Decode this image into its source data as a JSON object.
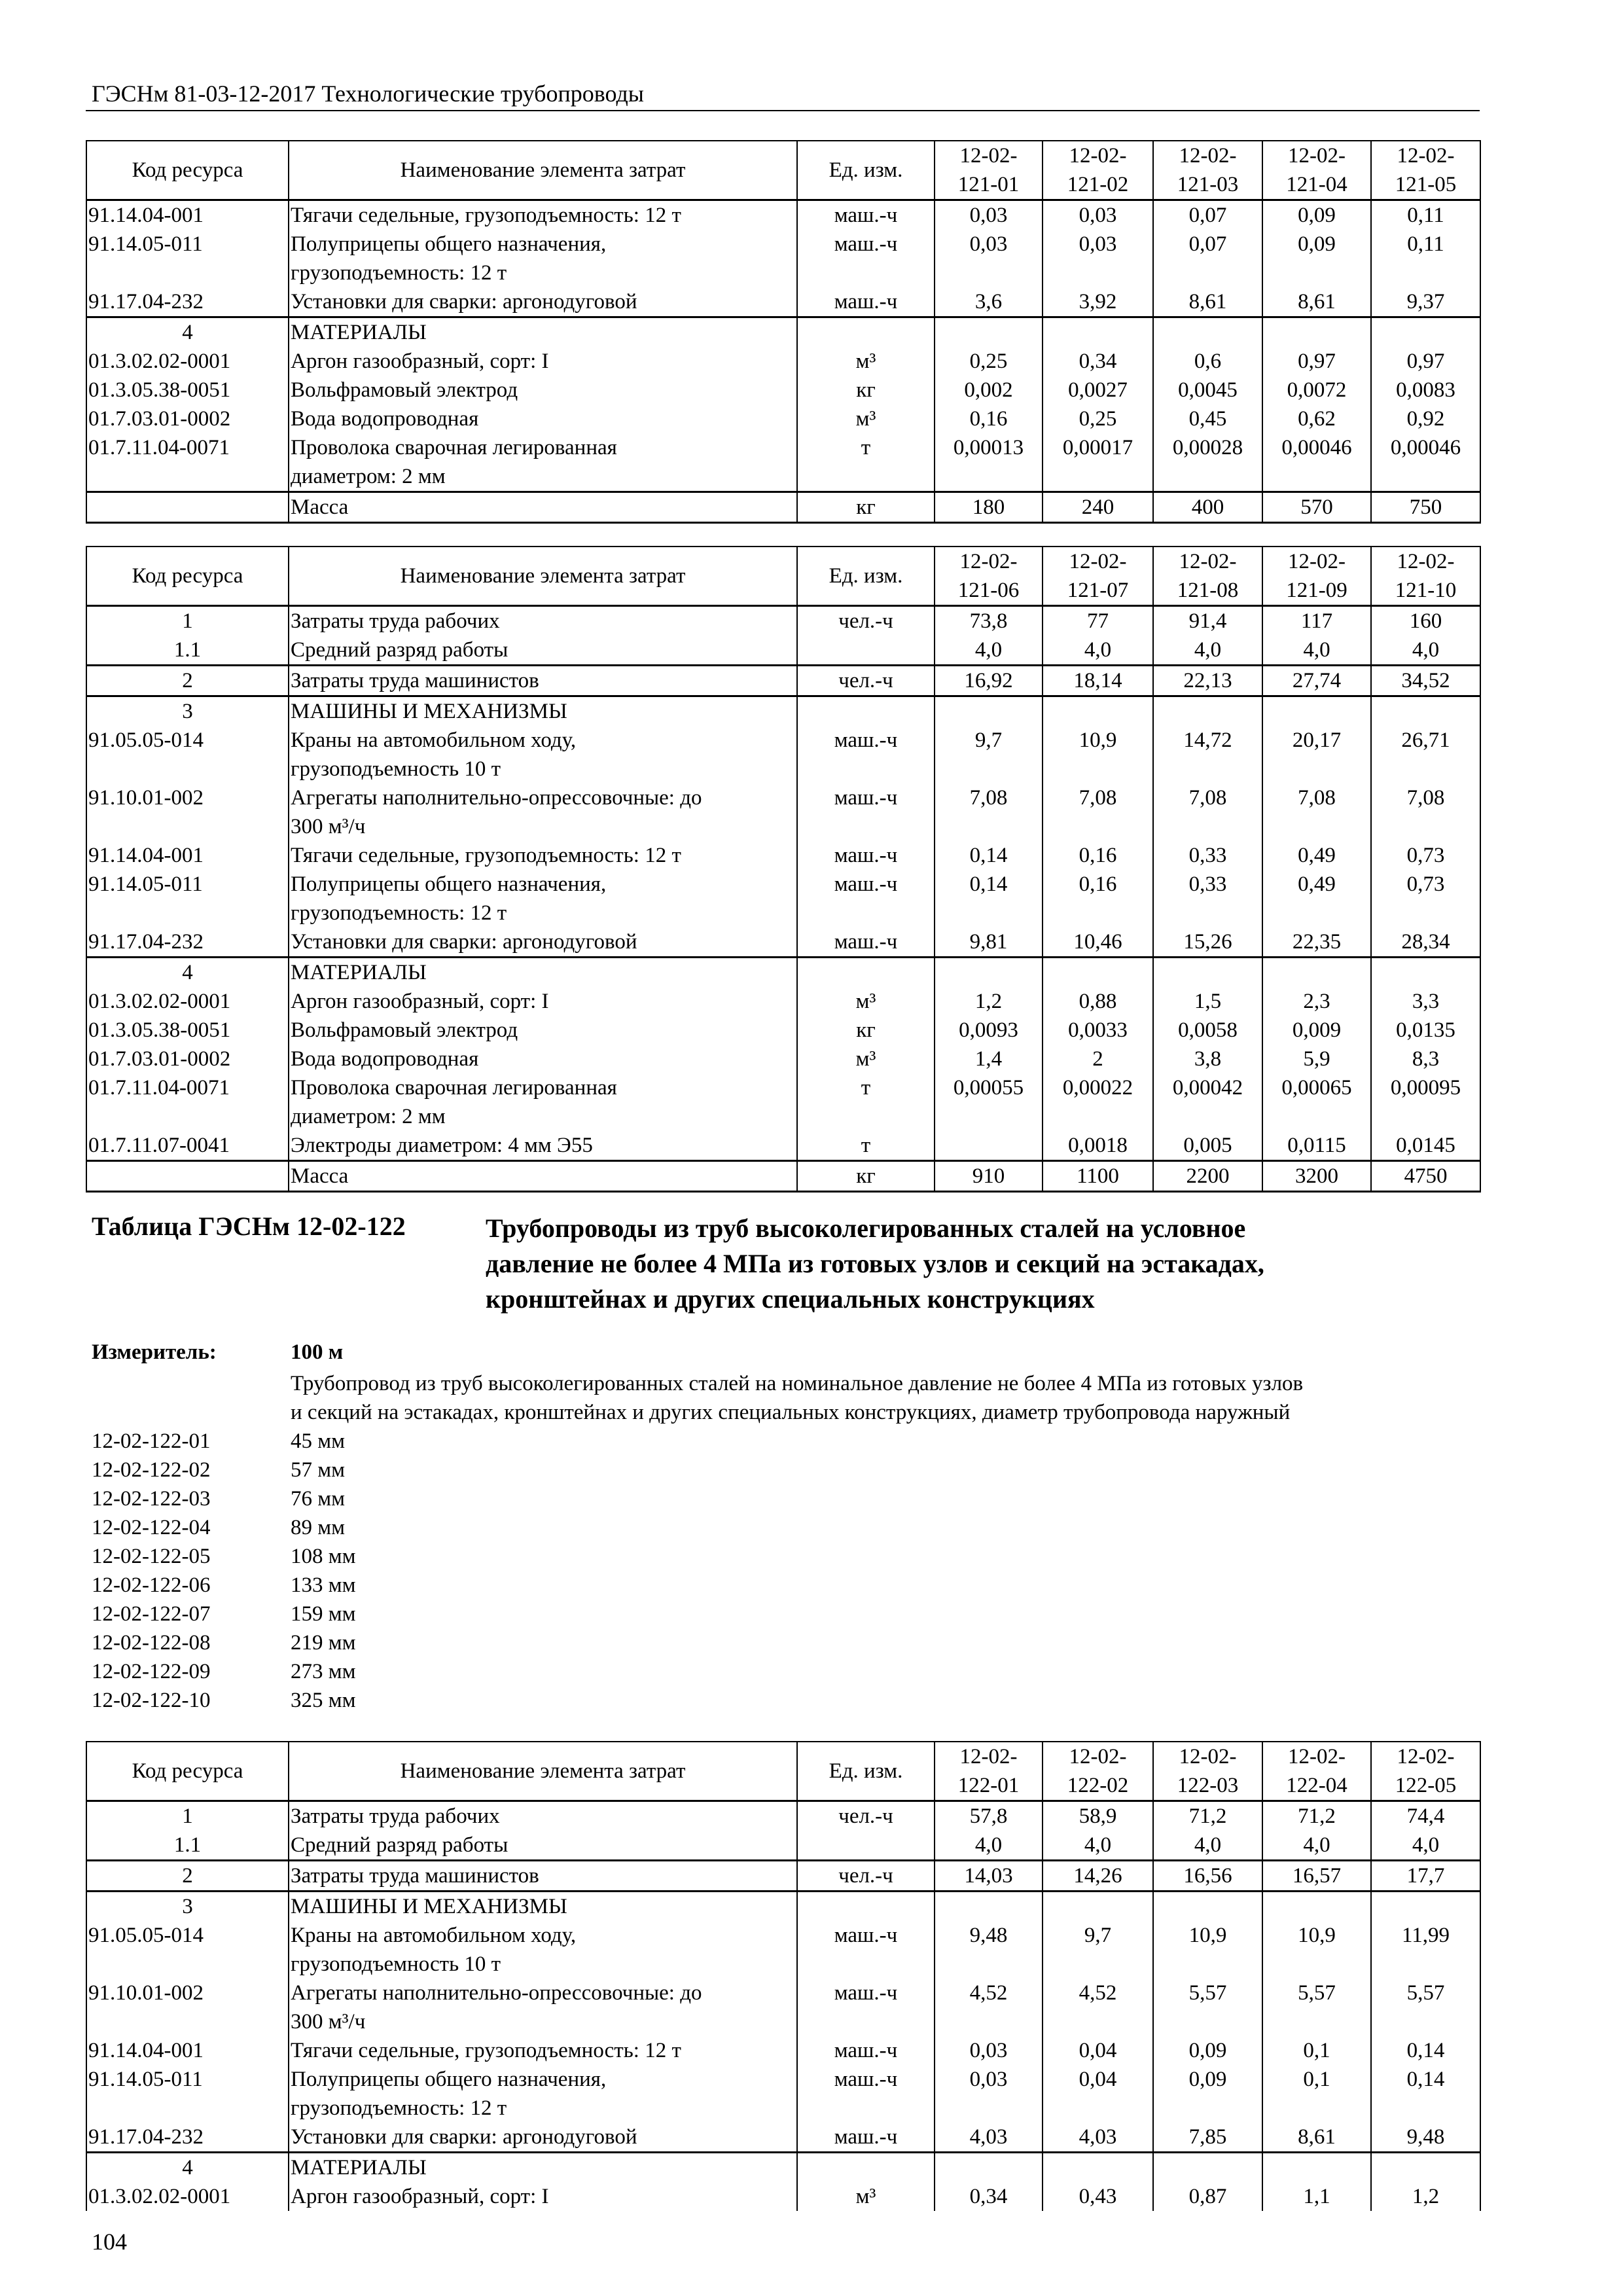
{
  "running_head": "ГЭСНм 81-03-12-2017 Технологические трубопроводы",
  "headers": {
    "code": "Код ресурса",
    "name": "Наименование элемента затрат",
    "unit": "Ед. изм."
  },
  "tables": [
    {
      "columns": [
        "12-02-\n121-01",
        "12-02-\n121-02",
        "12-02-\n121-03",
        "12-02-\n121-04",
        "12-02-\n121-05"
      ],
      "sections": [
        [
          {
            "code": "91.14.04-001",
            "name": "Тягачи седельные, грузоподъемность: 12 т",
            "unit": "маш.-ч",
            "values": [
              "0,03",
              "0,03",
              "0,07",
              "0,09",
              "0,11"
            ]
          },
          {
            "code": "91.14.05-011",
            "name": "Полуприцепы общего назначения,\nгрузоподъемность: 12 т",
            "unit": "маш.-ч",
            "values": [
              "0,03",
              "0,03",
              "0,07",
              "0,09",
              "0,11"
            ]
          },
          {
            "code": "91.17.04-232",
            "name": "Установки для сварки: аргонодуговой",
            "unit": "маш.-ч",
            "values": [
              "3,6",
              "3,92",
              "8,61",
              "8,61",
              "9,37"
            ]
          }
        ],
        [
          {
            "code": "4",
            "name": "МАТЕРИАЛЫ",
            "unit": "",
            "values": [
              "",
              "",
              "",
              "",
              ""
            ]
          },
          {
            "code": "01.3.02.02-0001",
            "name": "Аргон газообразный, сорт: I",
            "unit": "м³",
            "values": [
              "0,25",
              "0,34",
              "0,6",
              "0,97",
              "0,97"
            ]
          },
          {
            "code": "01.3.05.38-0051",
            "name": "Вольфрамовый электрод",
            "unit": "кг",
            "values": [
              "0,002",
              "0,0027",
              "0,0045",
              "0,0072",
              "0,0083"
            ]
          },
          {
            "code": "01.7.03.01-0002",
            "name": "Вода водопроводная",
            "unit": "м³",
            "values": [
              "0,16",
              "0,25",
              "0,45",
              "0,62",
              "0,92"
            ]
          },
          {
            "code": "01.7.11.04-0071",
            "name": "Проволока сварочная легированная\nдиаметром: 2 мм",
            "unit": "т",
            "values": [
              "0,00013",
              "0,00017",
              "0,00028",
              "0,00046",
              "0,00046"
            ]
          }
        ],
        [
          {
            "code": "",
            "name": "Масса",
            "unit": "кг",
            "values": [
              "180",
              "240",
              "400",
              "570",
              "750"
            ]
          }
        ]
      ]
    },
    {
      "columns": [
        "12-02-\n121-06",
        "12-02-\n121-07",
        "12-02-\n121-08",
        "12-02-\n121-09",
        "12-02-\n121-10"
      ],
      "sections": [
        [
          {
            "code": "1",
            "name": "Затраты труда рабочих",
            "unit": "чел.-ч",
            "values": [
              "73,8",
              "77",
              "91,4",
              "117",
              "160"
            ]
          },
          {
            "code": "1.1",
            "name": "Средний разряд работы",
            "unit": "",
            "values": [
              "4,0",
              "4,0",
              "4,0",
              "4,0",
              "4,0"
            ]
          }
        ],
        [
          {
            "code": "2",
            "name": "Затраты труда машинистов",
            "unit": "чел.-ч",
            "values": [
              "16,92",
              "18,14",
              "22,13",
              "27,74",
              "34,52"
            ]
          }
        ],
        [
          {
            "code": "3",
            "name": "МАШИНЫ И МЕХАНИЗМЫ",
            "unit": "",
            "values": [
              "",
              "",
              "",
              "",
              ""
            ]
          },
          {
            "code": "91.05.05-014",
            "name": "Краны на автомобильном ходу,\nгрузоподъемность 10 т",
            "unit": "маш.-ч",
            "values": [
              "9,7",
              "10,9",
              "14,72",
              "20,17",
              "26,71"
            ]
          },
          {
            "code": "91.10.01-002",
            "name": "Агрегаты наполнительно-опрессовочные: до\n300 м³/ч",
            "unit": "маш.-ч",
            "values": [
              "7,08",
              "7,08",
              "7,08",
              "7,08",
              "7,08"
            ]
          },
          {
            "code": "91.14.04-001",
            "name": "Тягачи седельные, грузоподъемность: 12 т",
            "unit": "маш.-ч",
            "values": [
              "0,14",
              "0,16",
              "0,33",
              "0,49",
              "0,73"
            ]
          },
          {
            "code": "91.14.05-011",
            "name": "Полуприцепы общего назначения,\nгрузоподъемность: 12 т",
            "unit": "маш.-ч",
            "values": [
              "0,14",
              "0,16",
              "0,33",
              "0,49",
              "0,73"
            ]
          },
          {
            "code": "91.17.04-232",
            "name": "Установки для сварки: аргонодуговой",
            "unit": "маш.-ч",
            "values": [
              "9,81",
              "10,46",
              "15,26",
              "22,35",
              "28,34"
            ]
          }
        ],
        [
          {
            "code": "4",
            "name": "МАТЕРИАЛЫ",
            "unit": "",
            "values": [
              "",
              "",
              "",
              "",
              ""
            ]
          },
          {
            "code": "01.3.02.02-0001",
            "name": "Аргон газообразный, сорт: I",
            "unit": "м³",
            "values": [
              "1,2",
              "0,88",
              "1,5",
              "2,3",
              "3,3"
            ]
          },
          {
            "code": "01.3.05.38-0051",
            "name": "Вольфрамовый электрод",
            "unit": "кг",
            "values": [
              "0,0093",
              "0,0033",
              "0,0058",
              "0,009",
              "0,0135"
            ]
          },
          {
            "code": "01.7.03.01-0002",
            "name": "Вода водопроводная",
            "unit": "м³",
            "values": [
              "1,4",
              "2",
              "3,8",
              "5,9",
              "8,3"
            ]
          },
          {
            "code": "01.7.11.04-0071",
            "name": "Проволока сварочная легированная\nдиаметром: 2 мм",
            "unit": "т",
            "values": [
              "0,00055",
              "0,00022",
              "0,00042",
              "0,00065",
              "0,00095"
            ]
          },
          {
            "code": "01.7.11.07-0041",
            "name": "Электроды диаметром: 4 мм Э55",
            "unit": "т",
            "values": [
              "",
              "0,0018",
              "0,005",
              "0,0115",
              "0,0145"
            ]
          }
        ],
        [
          {
            "code": "",
            "name": "Масса",
            "unit": "кг",
            "values": [
              "910",
              "1100",
              "2200",
              "3200",
              "4750"
            ]
          }
        ]
      ]
    },
    {
      "columns": [
        "12-02-\n122-01",
        "12-02-\n122-02",
        "12-02-\n122-03",
        "12-02-\n122-04",
        "12-02-\n122-05"
      ],
      "sections": [
        [
          {
            "code": "1",
            "name": "Затраты труда рабочих",
            "unit": "чел.-ч",
            "values": [
              "57,8",
              "58,9",
              "71,2",
              "71,2",
              "74,4"
            ]
          },
          {
            "code": "1.1",
            "name": "Средний разряд работы",
            "unit": "",
            "values": [
              "4,0",
              "4,0",
              "4,0",
              "4,0",
              "4,0"
            ]
          }
        ],
        [
          {
            "code": "2",
            "name": "Затраты труда машинистов",
            "unit": "чел.-ч",
            "values": [
              "14,03",
              "14,26",
              "16,56",
              "16,57",
              "17,7"
            ]
          }
        ],
        [
          {
            "code": "3",
            "name": "МАШИНЫ И МЕХАНИЗМЫ",
            "unit": "",
            "values": [
              "",
              "",
              "",
              "",
              ""
            ]
          },
          {
            "code": "91.05.05-014",
            "name": "Краны на автомобильном ходу,\nгрузоподъемность 10 т",
            "unit": "маш.-ч",
            "values": [
              "9,48",
              "9,7",
              "10,9",
              "10,9",
              "11,99"
            ]
          },
          {
            "code": "91.10.01-002",
            "name": "Агрегаты наполнительно-опрессовочные: до\n300 м³/ч",
            "unit": "маш.-ч",
            "values": [
              "4,52",
              "4,52",
              "5,57",
              "5,57",
              "5,57"
            ]
          },
          {
            "code": "91.14.04-001",
            "name": "Тягачи седельные, грузоподъемность: 12 т",
            "unit": "маш.-ч",
            "values": [
              "0,03",
              "0,04",
              "0,09",
              "0,1",
              "0,14"
            ]
          },
          {
            "code": "91.14.05-011",
            "name": "Полуприцепы общего назначения,\nгрузоподъемность: 12 т",
            "unit": "маш.-ч",
            "values": [
              "0,03",
              "0,04",
              "0,09",
              "0,1",
              "0,14"
            ]
          },
          {
            "code": "91.17.04-232",
            "name": "Установки для сварки: аргонодуговой",
            "unit": "маш.-ч",
            "values": [
              "4,03",
              "4,03",
              "7,85",
              "8,61",
              "9,48"
            ]
          }
        ],
        [
          {
            "code": "4",
            "name": "МАТЕРИАЛЫ",
            "unit": "",
            "values": [
              "",
              "",
              "",
              "",
              ""
            ]
          },
          {
            "code": "01.3.02.02-0001",
            "name": "Аргон газообразный, сорт: I",
            "unit": "м³",
            "values": [
              "0,34",
              "0,43",
              "0,87",
              "1,1",
              "1,2"
            ]
          }
        ]
      ]
    }
  ],
  "table_title": {
    "label": "Таблица ГЭСНм 12-02-122",
    "text": "Трубопроводы из труб высоколегированных сталей на условное\nдавление не более 4 МПа из готовых узлов и секций на эстакадах,\nкронштейнах и других специальных конструкциях"
  },
  "meter": {
    "label": "Измеритель:",
    "value": "100 м",
    "description": "Трубопровод из труб высоколегированных сталей на номинальное давление не более 4 МПа из готовых узлов\nи секций на эстакадах, кронштейнах и других специальных конструкциях, диаметр трубопровода наружный"
  },
  "variants": [
    {
      "code": "12-02-122-01",
      "value": "45 мм"
    },
    {
      "code": "12-02-122-02",
      "value": "57 мм"
    },
    {
      "code": "12-02-122-03",
      "value": "76 мм"
    },
    {
      "code": "12-02-122-04",
      "value": "89 мм"
    },
    {
      "code": "12-02-122-05",
      "value": "108 мм"
    },
    {
      "code": "12-02-122-06",
      "value": "133 мм"
    },
    {
      "code": "12-02-122-07",
      "value": "159 мм"
    },
    {
      "code": "12-02-122-08",
      "value": "219 мм"
    },
    {
      "code": "12-02-122-09",
      "value": "273 мм"
    },
    {
      "code": "12-02-122-10",
      "value": "325 мм"
    }
  ],
  "page_number": "104"
}
